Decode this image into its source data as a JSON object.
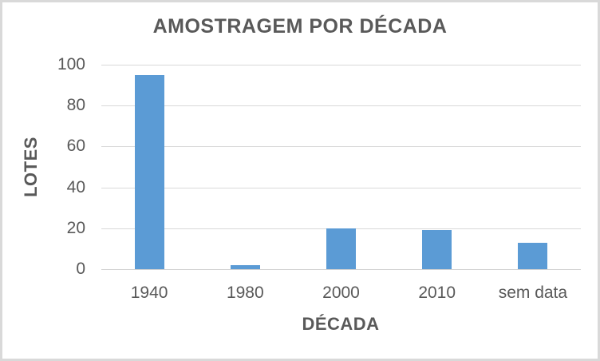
{
  "chart_data": {
    "type": "bar",
    "title": "AMOSTRAGEM POR DÉCADA",
    "xlabel": "DÉCADA",
    "ylabel": "LOTES",
    "categories": [
      "1940",
      "1980",
      "2000",
      "2010",
      "sem data"
    ],
    "values": [
      95,
      2,
      20,
      19,
      13
    ],
    "ylim": [
      0,
      100
    ],
    "yticks": [
      0,
      20,
      40,
      60,
      80,
      100
    ],
    "grid": "horizontal-only",
    "legend": "none",
    "colors": {
      "bar": "#5b9bd5",
      "text": "#595959",
      "gridline": "#d9d9d9",
      "axis_line": "#d2d2d2",
      "frame_border": "#d9d9d9",
      "background": "#ffffff"
    }
  }
}
